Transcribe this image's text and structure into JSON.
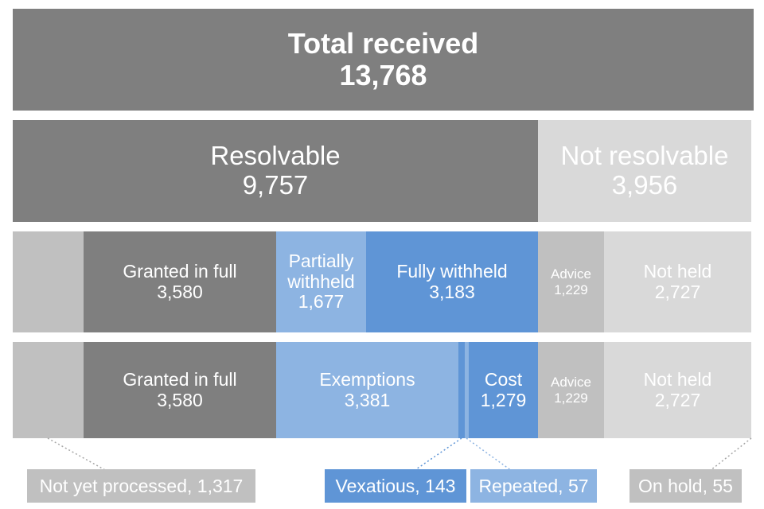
{
  "total": {
    "label": "Total received",
    "value": "13,768"
  },
  "level2": {
    "resolvable": {
      "label": "Resolvable",
      "value": "9,757"
    },
    "not_resolvable": {
      "label": "Not resolvable",
      "value": "3,956"
    }
  },
  "level3": {
    "granted": {
      "label": "Granted in full",
      "value": "3,580"
    },
    "partially": {
      "label_line1": "Partially",
      "label_line2": "withheld",
      "value": "1,677"
    },
    "fully": {
      "label": "Fully withheld",
      "value": "3,183"
    },
    "advice": {
      "label": "Advice",
      "value": "1,229"
    },
    "not_held": {
      "label": "Not held",
      "value": "2,727"
    }
  },
  "level4": {
    "granted": {
      "label": "Granted in full",
      "value": "3,580"
    },
    "exemptions": {
      "label": "Exemptions",
      "value": "3,381"
    },
    "cost": {
      "label": "Cost",
      "value": "1,279"
    },
    "advice": {
      "label": "Advice",
      "value": "1,229"
    },
    "not_held": {
      "label": "Not held",
      "value": "2,727"
    }
  },
  "callouts": {
    "not_yet_processed": "Not yet processed, 1,317",
    "vexatious": "Vexatious, 143",
    "repeated": "Repeated, 57",
    "on_hold": "On hold, 55"
  },
  "colors": {
    "dark_grey": "#7f7f7f",
    "mid_grey": "#c0c0c0",
    "light_grey": "#d9d9d9",
    "light_blue": "#8db4e2",
    "blue": "#5f95d6"
  }
}
